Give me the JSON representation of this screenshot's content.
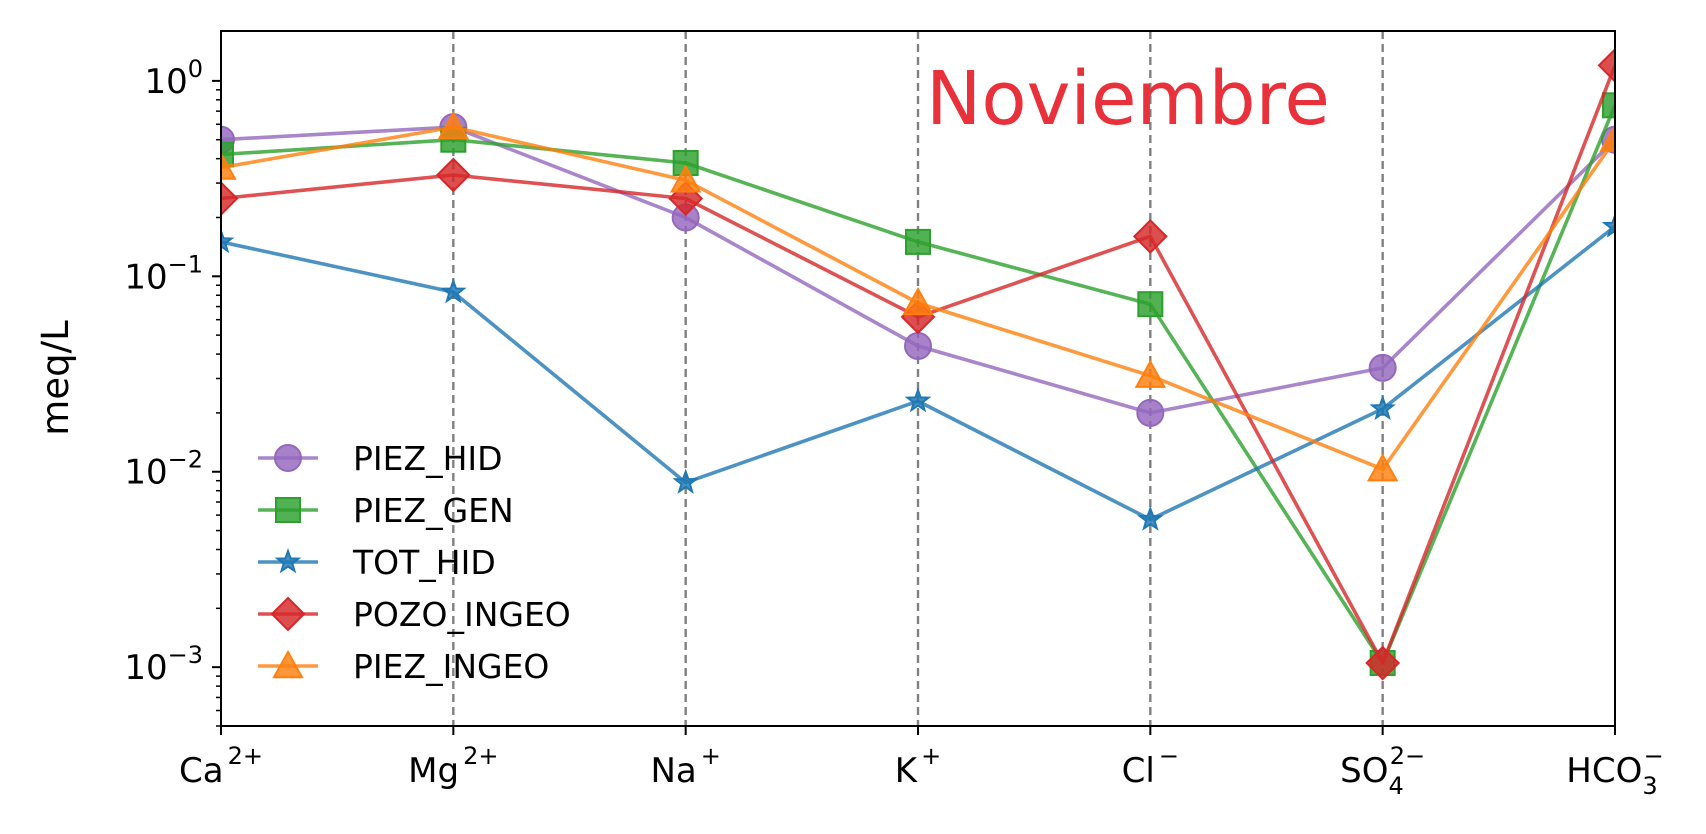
{
  "chart_data": {
    "type": "line",
    "title": "",
    "annotation": "Noviembre",
    "annotation_color": "#e8313b",
    "xlabel": "",
    "ylabel": "meq/L",
    "yscale": "log",
    "ylim": [
      0.0005,
      1.8
    ],
    "yticks": [
      {
        "value": 1,
        "base": "10",
        "exp": "0"
      },
      {
        "value": 0.1,
        "base": "10",
        "exp": "−1"
      },
      {
        "value": 0.01,
        "base": "10",
        "exp": "−2"
      },
      {
        "value": 0.001,
        "base": "10",
        "exp": "−3"
      }
    ],
    "categories": [
      {
        "base": "Ca",
        "sup": "2+",
        "sub": ""
      },
      {
        "base": "Mg",
        "sup": "2+",
        "sub": ""
      },
      {
        "base": "Na",
        "sup": "+",
        "sub": ""
      },
      {
        "base": "K",
        "sup": "+",
        "sub": ""
      },
      {
        "base": "Cl",
        "sup": "−",
        "sub": ""
      },
      {
        "base": "SO",
        "sup": "2−",
        "sub": "4"
      },
      {
        "base": "HCO",
        "sup": "−",
        "sub": "3"
      }
    ],
    "vertical_gridlines": "dashed at interior categories",
    "legend_position": "lower-left",
    "series": [
      {
        "name": "PIEZ_HID",
        "color": "#9467bd",
        "marker": "circle",
        "values": [
          0.5,
          0.58,
          0.2,
          0.044,
          0.02,
          0.034,
          0.5
        ]
      },
      {
        "name": "PIEZ_GEN",
        "color": "#2ca02c",
        "marker": "square",
        "values": [
          0.42,
          0.5,
          0.38,
          0.15,
          0.072,
          0.00105,
          0.75
        ]
      },
      {
        "name": "TOT_HID",
        "color": "#1f77b4",
        "marker": "star",
        "values": [
          0.15,
          0.083,
          0.0088,
          0.023,
          0.0057,
          0.021,
          0.18
        ]
      },
      {
        "name": "POZO_INGEO",
        "color": "#d62728",
        "marker": "diamond",
        "values": [
          0.25,
          0.33,
          0.25,
          0.062,
          0.16,
          0.00105,
          1.2
        ]
      },
      {
        "name": "PIEZ_INGEO",
        "color": "#ff7f0e",
        "marker": "triangle",
        "values": [
          0.36,
          0.58,
          0.31,
          0.073,
          0.031,
          0.0103,
          0.5
        ]
      }
    ]
  }
}
